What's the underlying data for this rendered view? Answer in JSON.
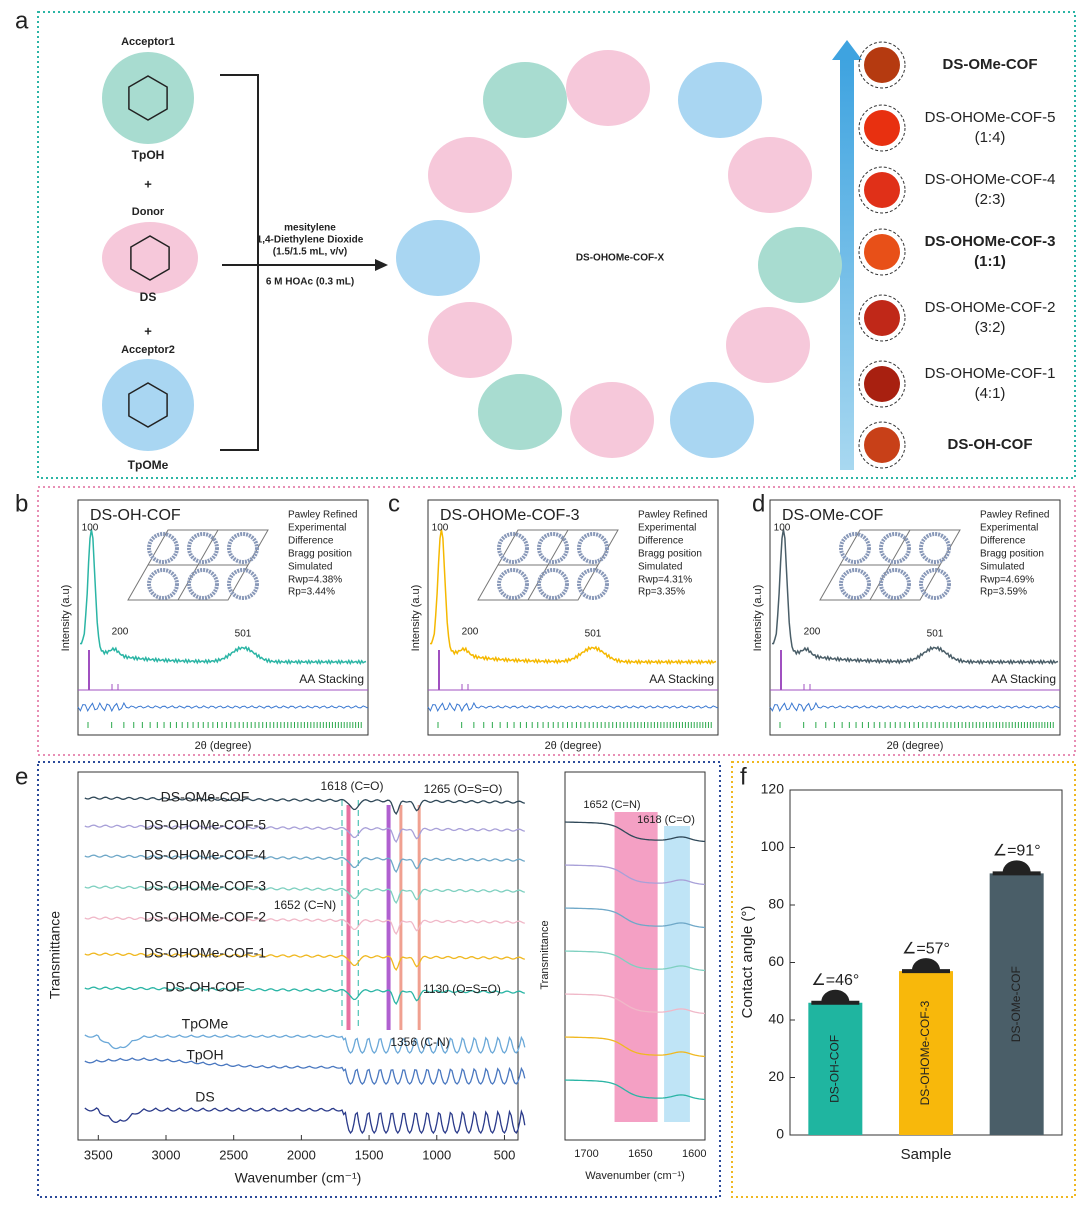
{
  "panel_labels": [
    "a",
    "b",
    "c",
    "d",
    "e",
    "f"
  ],
  "scheme": {
    "acceptor1": "Acceptor1",
    "tpoh": "TpOH",
    "plus": "+",
    "donor": "Donor",
    "ds": "DS",
    "acceptor2": "Acceptor2",
    "tpome": "TpOMe",
    "conditions": [
      "mesitylene",
      "1,4-Diethylene Dioxide",
      "(1.5/1.5 mL, v/v)",
      "6 M HOAc (0.3 mL)"
    ],
    "product": "DS-OHOMe-COF-X",
    "samples": [
      {
        "name": "DS-OMe-COF",
        "color": "#5b6b73"
      },
      {
        "name": "DS-OHOMe-COF-5",
        "ratio": "(1:4)",
        "color": "#222222"
      },
      {
        "name": "DS-OHOMe-COF-4",
        "ratio": "(2:3)",
        "color": "#222222"
      },
      {
        "name": "DS-OHOMe-COF-3",
        "ratio": "(1:1)",
        "color": "#f5b800"
      },
      {
        "name": "DS-OHOMe-COF-2",
        "ratio": "(3:2)",
        "color": "#222222"
      },
      {
        "name": "DS-OHOMe-COF-1",
        "ratio": "(4:1)",
        "color": "#222222"
      },
      {
        "name": "DS-OH-COF",
        "color": "#2bb5a5"
      }
    ]
  },
  "xrd": {
    "panels": [
      {
        "title": "DS-OH-COF",
        "color": "#2bb5a5",
        "rwp": "Rwp=4.38%",
        "rp": "Rp=3.44%"
      },
      {
        "title": "DS-OHOMe-COF-3",
        "color": "#f5b800",
        "rwp": "Rwp=4.31%",
        "rp": "Rp=3.35%"
      },
      {
        "title": "DS-OMe-COF",
        "color": "#4a5e68",
        "rwp": "Rwp=4.69%",
        "rp": "Rp=3.59%"
      }
    ],
    "legend": [
      "Pawley Refined",
      "Experimental",
      "Difference",
      "Bragg position",
      "Simulated"
    ],
    "peaks": [
      "100",
      "200",
      "501"
    ],
    "stacking": "AA Stacking",
    "ylabel": "Intensity (a.u)",
    "xlabel": "2θ (degree)"
  },
  "ftir": {
    "samples": [
      {
        "name": "DS-OMe-COF",
        "color": "#2f4858"
      },
      {
        "name": "DS-OHOMe-COF-5",
        "color": "#a8a0d8"
      },
      {
        "name": "DS-OHOMe-COF-4",
        "color": "#6fa8c8"
      },
      {
        "name": "DS-OHOMe-COF-3",
        "color": "#7fd0c0"
      },
      {
        "name": "DS-OHOMe-COF-2",
        "color": "#f0b8c8"
      },
      {
        "name": "DS-OHOMe-COF-1",
        "color": "#f0b820"
      },
      {
        "name": "DS-OH-COF",
        "color": "#2bb5a5"
      },
      {
        "name": "TpOMe",
        "color": "#6aa8d8"
      },
      {
        "name": "TpOH",
        "color": "#4a78c0"
      },
      {
        "name": "DS",
        "color": "#2a3a8a"
      }
    ],
    "annotations": [
      "1618 (C=O)",
      "1265 (O=S=O)",
      "1652 (C=N)",
      "1130 (O=S=O)",
      "1356 (C-N)"
    ],
    "xticks": [
      "3500",
      "3000",
      "2500",
      "2000",
      "1500",
      "1000",
      "500"
    ],
    "xlabel": "Wavenumber (cm⁻¹)",
    "ylabel": "Transmittance",
    "inset": {
      "annotations": [
        "1652 (C=N)",
        "1618 (C=O)"
      ],
      "xticks": [
        "1700",
        "1650",
        "1600"
      ],
      "xlabel": "Wavenumber (cm⁻¹)",
      "ylabel": "Transmittance"
    }
  },
  "chart_data": {
    "type": "bar",
    "categories": [
      "DS-OH-COF",
      "DS-OHOMe-COF-3",
      "DS-OMe-COF"
    ],
    "values": [
      46,
      57,
      91
    ],
    "value_labels": [
      "∠=46°",
      "∠=57°",
      "∠=91°"
    ],
    "colors": [
      "#1fb5a0",
      "#f8b80b",
      "#4a5e68"
    ],
    "ylim": [
      0,
      120
    ],
    "yticks": [
      0,
      20,
      40,
      60,
      80,
      100,
      120
    ],
    "ylabel": "Contact angle (°)",
    "xlabel": "Sample"
  }
}
